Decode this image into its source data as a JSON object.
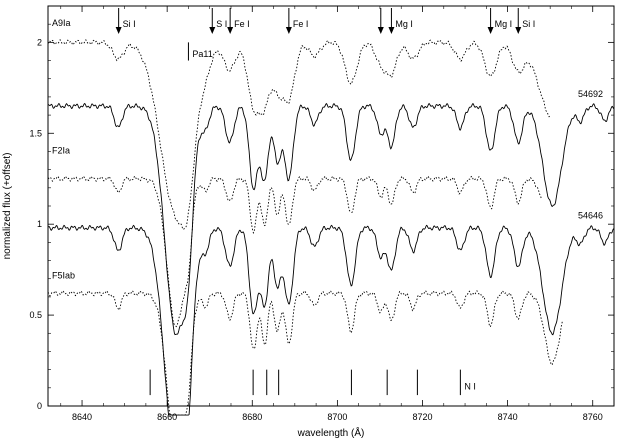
{
  "chart_data": {
    "type": "line",
    "xlabel": "wavelength (Å)",
    "ylabel": "normalized flux (+offset)",
    "xlim": [
      8632,
      8765
    ],
    "ylim": [
      0,
      2.2
    ],
    "x_ticks": [
      8640,
      8660,
      8680,
      8700,
      8720,
      8740,
      8760
    ],
    "y_ticks": [
      0,
      0.5,
      1,
      1.5,
      2
    ],
    "y_tick_labels": [
      "0",
      "0.5",
      "1",
      "1.5",
      "2"
    ],
    "grid": false,
    "series": [
      {
        "name": "A9Ia",
        "style": "dotted",
        "offset": 2.0,
        "x_range": [
          8632,
          8750
        ]
      },
      {
        "name": "54692",
        "style": "solid",
        "offset": 1.65,
        "x_range": [
          8632,
          8765
        ]
      },
      {
        "name": "F2Ia",
        "style": "dotted",
        "offset": 1.25,
        "x_range": [
          8632,
          8748
        ]
      },
      {
        "name": "54646",
        "style": "solid",
        "offset": 0.98,
        "x_range": [
          8632,
          8765
        ]
      },
      {
        "name": "F5Iab",
        "style": "dotted",
        "offset": 0.62,
        "x_range": [
          8632,
          8753
        ]
      }
    ],
    "absorption_lines": [
      {
        "x": 8648.5,
        "depth": 0.12,
        "width": 0.9
      },
      {
        "x": 8662.1,
        "depth": 1.25,
        "width": 2.6
      },
      {
        "x": 8665.0,
        "depth": 0.35,
        "width": 1.0
      },
      {
        "x": 8669.0,
        "depth": 0.1,
        "width": 0.9
      },
      {
        "x": 8674.7,
        "depth": 0.2,
        "width": 1.0
      },
      {
        "x": 8680.3,
        "depth": 0.45,
        "width": 1.0
      },
      {
        "x": 8682.9,
        "depth": 0.4,
        "width": 0.9
      },
      {
        "x": 8685.9,
        "depth": 0.3,
        "width": 0.9
      },
      {
        "x": 8688.6,
        "depth": 0.4,
        "width": 1.0
      },
      {
        "x": 8694.6,
        "depth": 0.1,
        "width": 0.9
      },
      {
        "x": 8703.2,
        "depth": 0.3,
        "width": 1.0
      },
      {
        "x": 8710.2,
        "depth": 0.15,
        "width": 0.9
      },
      {
        "x": 8712.7,
        "depth": 0.22,
        "width": 0.9
      },
      {
        "x": 8717.8,
        "depth": 0.12,
        "width": 0.9
      },
      {
        "x": 8728.9,
        "depth": 0.12,
        "width": 0.9
      },
      {
        "x": 8736.0,
        "depth": 0.25,
        "width": 1.0
      },
      {
        "x": 8742.5,
        "depth": 0.2,
        "width": 1.0
      },
      {
        "x": 8750.5,
        "depth": 0.55,
        "width": 2.2
      },
      {
        "x": 8757.1,
        "depth": 0.08,
        "width": 0.9
      },
      {
        "x": 8762.8,
        "depth": 0.08,
        "width": 0.9
      }
    ],
    "annotations_arrows": [
      {
        "label": "Si I",
        "x": 8648.6
      },
      {
        "label": "S I",
        "x": 8670.6
      },
      {
        "label": "Fe I",
        "x": 8674.8
      },
      {
        "label": "Fe I",
        "x": 8688.6
      },
      {
        "label": "",
        "x": 8710.2
      },
      {
        "label": "Mg I",
        "x": 8712.7
      },
      {
        "label": "Mg I",
        "x": 8736.0
      },
      {
        "label": "Si I",
        "x": 8742.5
      }
    ],
    "pa_marker": {
      "label": "Pa11",
      "x": 8665.0
    },
    "n_lines": {
      "label": "N I",
      "x": [
        8656.0,
        8680.2,
        8683.4,
        8686.2,
        8703.3,
        8711.7,
        8718.8,
        8728.9
      ]
    }
  }
}
